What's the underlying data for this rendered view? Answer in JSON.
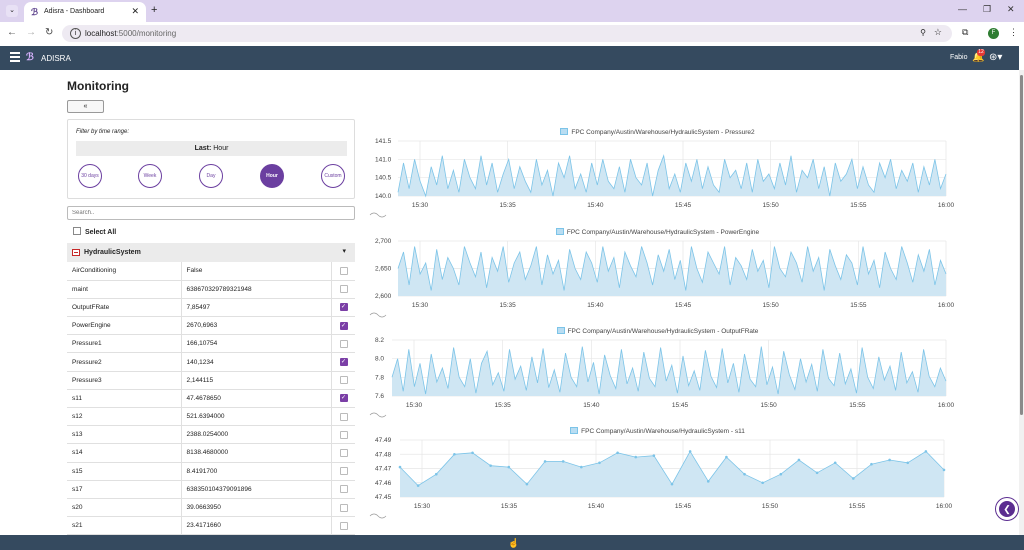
{
  "browser": {
    "tab_title": "Adisra - Dashboard",
    "url_host": "localhost",
    "url_path": ":5000/monitoring",
    "profile_initial": "F"
  },
  "app": {
    "name": "ADISRA",
    "user": "Fabio",
    "notification_count": "12"
  },
  "page": {
    "title": "Monitoring",
    "collapse_label": "«"
  },
  "filter": {
    "label": "Filter by time range:",
    "last_prefix": "Last:",
    "last_value": "Hour",
    "ranges": [
      "30 days",
      "Week",
      "Day",
      "Hour",
      "Custom"
    ],
    "active_range": "Hour"
  },
  "search": {
    "placeholder": "Search.."
  },
  "select_all_label": "Select All",
  "group": {
    "name": "HydraulicSystem"
  },
  "tags": [
    {
      "name": "AirConditioning",
      "value": "False",
      "checked": false
    },
    {
      "name": "maint",
      "value": "638670329789321948",
      "checked": false
    },
    {
      "name": "OutputFRate",
      "value": "7,85497",
      "checked": true
    },
    {
      "name": "PowerEngine",
      "value": "2670,6963",
      "checked": true
    },
    {
      "name": "Pressure1",
      "value": "166,10754",
      "checked": false
    },
    {
      "name": "Pressure2",
      "value": "140,1234",
      "checked": true
    },
    {
      "name": "Pressure3",
      "value": "2,144115",
      "checked": false
    },
    {
      "name": "s11",
      "value": "47.4678650",
      "checked": true
    },
    {
      "name": "s12",
      "value": "521.6394000",
      "checked": false
    },
    {
      "name": "s13",
      "value": "2388.0254000",
      "checked": false
    },
    {
      "name": "s14",
      "value": "8138.4680000",
      "checked": false
    },
    {
      "name": "s15",
      "value": "8.4191700",
      "checked": false
    },
    {
      "name": "s17",
      "value": "638350104379091896",
      "checked": false
    },
    {
      "name": "s20",
      "value": "39.0663950",
      "checked": false
    },
    {
      "name": "s21",
      "value": "23.4171660",
      "checked": false
    }
  ],
  "chart_data": [
    {
      "type": "area",
      "title": "FPC Company/Austin/Warehouse/HydraulicSystem - Pressure2",
      "x_ticks": [
        "15:30",
        "15:35",
        "15:40",
        "15:45",
        "15:50",
        "15:55",
        "16:00"
      ],
      "y_ticks": [
        "141.5",
        "141.0",
        "140.5",
        "140.0"
      ],
      "ylim": [
        140.0,
        141.5
      ],
      "grid": true,
      "values": [
        140.1,
        140.9,
        140.2,
        141.0,
        140.4,
        140.0,
        140.8,
        140.3,
        141.1,
        140.2,
        140.7,
        140.1,
        141.0,
        140.5,
        140.2,
        141.1,
        140.3,
        140.9,
        140.1,
        140.6,
        141.0,
        140.2,
        140.8,
        140.4,
        140.1,
        141.0,
        140.3,
        140.7,
        140.0,
        140.9,
        140.5,
        141.1,
        140.2,
        140.6,
        140.1,
        140.9,
        140.3,
        141.0,
        140.4,
        140.2,
        140.8,
        140.1,
        141.0,
        140.5,
        140.3,
        140.9,
        140.0,
        140.7,
        141.1,
        140.2,
        140.6,
        140.1,
        140.9,
        140.4,
        141.0,
        140.2,
        140.8,
        140.3,
        140.1,
        141.0,
        140.5,
        140.7,
        140.2,
        140.9,
        140.1,
        141.0,
        140.4,
        140.6,
        140.2,
        140.9,
        140.3,
        141.1,
        140.1,
        140.7,
        140.5,
        141.0,
        140.2,
        140.8,
        140.0,
        140.9,
        140.4,
        140.6,
        141.0,
        140.2,
        140.8,
        140.3,
        140.1,
        140.9,
        140.5,
        141.0,
        140.2,
        140.7,
        140.4,
        140.9,
        140.1,
        140.8,
        140.3,
        141.0,
        140.2,
        140.6
      ]
    },
    {
      "type": "area",
      "title": "FPC Company/Austin/Warehouse/HydraulicSystem - PowerEngine",
      "x_ticks": [
        "15:30",
        "15:35",
        "15:40",
        "15:45",
        "15:50",
        "15:55",
        "16:00"
      ],
      "y_ticks": [
        "2,700",
        "2,650",
        "2,600"
      ],
      "ylim": [
        2600,
        2700
      ],
      "grid": true,
      "values": [
        2650,
        2680,
        2620,
        2690,
        2640,
        2660,
        2610,
        2685,
        2630,
        2670,
        2650,
        2620,
        2690,
        2660,
        2635,
        2680,
        2615,
        2670,
        2645,
        2690,
        2625,
        2660,
        2680,
        2630,
        2655,
        2690,
        2620,
        2675,
        2640,
        2665,
        2610,
        2685,
        2650,
        2630,
        2680,
        2660,
        2625,
        2690,
        2645,
        2670,
        2615,
        2680,
        2655,
        2635,
        2690,
        2660,
        2620,
        2675,
        2645,
        2685,
        2630,
        2665,
        2610,
        2690,
        2650,
        2625,
        2680,
        2660,
        2640,
        2690,
        2620,
        2670,
        2655,
        2630,
        2685,
        2645,
        2665,
        2615,
        2690,
        2650,
        2635,
        2680,
        2660,
        2625,
        2690,
        2645,
        2670,
        2610,
        2685,
        2655,
        2630,
        2675,
        2660,
        2620,
        2690,
        2640,
        2665,
        2615,
        2680,
        2650,
        2630,
        2690,
        2660,
        2625,
        2675,
        2645,
        2685,
        2620,
        2665,
        2640
      ]
    },
    {
      "type": "area",
      "title": "FPC Company/Austin/Warehouse/HydraulicSystem - OutputFRate",
      "x_ticks": [
        "15:30",
        "15:35",
        "15:40",
        "15:45",
        "15:50",
        "15:55",
        "16:00"
      ],
      "y_ticks": [
        "8.2",
        "8.0",
        "7.8",
        "7.6"
      ],
      "ylim": [
        7.6,
        8.2
      ],
      "grid": true,
      "values": [
        7.8,
        8.0,
        7.65,
        8.1,
        7.7,
        7.95,
        7.62,
        8.05,
        7.75,
        7.9,
        7.68,
        8.12,
        7.8,
        7.7,
        8.0,
        7.63,
        7.95,
        8.08,
        7.72,
        7.85,
        7.65,
        8.1,
        7.78,
        7.92,
        7.66,
        8.02,
        7.74,
        8.11,
        7.69,
        7.88,
        7.64,
        8.06,
        7.8,
        7.7,
        8.13,
        7.75,
        7.96,
        7.62,
        8.04,
        7.82,
        7.68,
        8.1,
        7.73,
        7.9,
        7.65,
        8.07,
        7.79,
        7.7,
        8.12,
        7.76,
        7.93,
        7.63,
        8.03,
        7.71,
        7.87,
        7.66,
        8.09,
        7.81,
        7.69,
        8.11,
        7.74,
        7.95,
        7.64,
        8.05,
        7.78,
        7.7,
        8.13,
        7.72,
        7.91,
        7.62,
        8.08,
        7.83,
        7.67,
        8.0,
        7.75,
        7.94,
        7.65,
        8.1,
        7.79,
        7.71,
        8.06,
        7.73,
        7.89,
        7.63,
        8.12,
        7.8,
        7.68,
        8.02,
        7.77,
        7.92,
        7.66,
        8.07,
        7.74,
        7.86,
        7.64,
        8.1,
        7.81,
        7.7,
        7.9,
        7.76
      ]
    },
    {
      "type": "area",
      "title": "FPC Company/Austin/Warehouse/HydraulicSystem - s11",
      "x_ticks": [
        "15:30",
        "15:35",
        "15:40",
        "15:45",
        "15:50",
        "15:55",
        "16:00"
      ],
      "y_ticks": [
        "47.49",
        "47.48",
        "47.47",
        "47.46",
        "47.45"
      ],
      "ylim": [
        47.45,
        47.49
      ],
      "grid": true,
      "values": [
        47.471,
        47.458,
        47.466,
        47.48,
        47.481,
        47.472,
        47.471,
        47.459,
        47.475,
        47.475,
        47.471,
        47.474,
        47.481,
        47.478,
        47.479,
        47.459,
        47.482,
        47.461,
        47.478,
        47.466,
        47.46,
        47.466,
        47.476,
        47.467,
        47.474,
        47.463,
        47.473,
        47.476,
        47.474,
        47.482,
        47.469
      ]
    }
  ]
}
